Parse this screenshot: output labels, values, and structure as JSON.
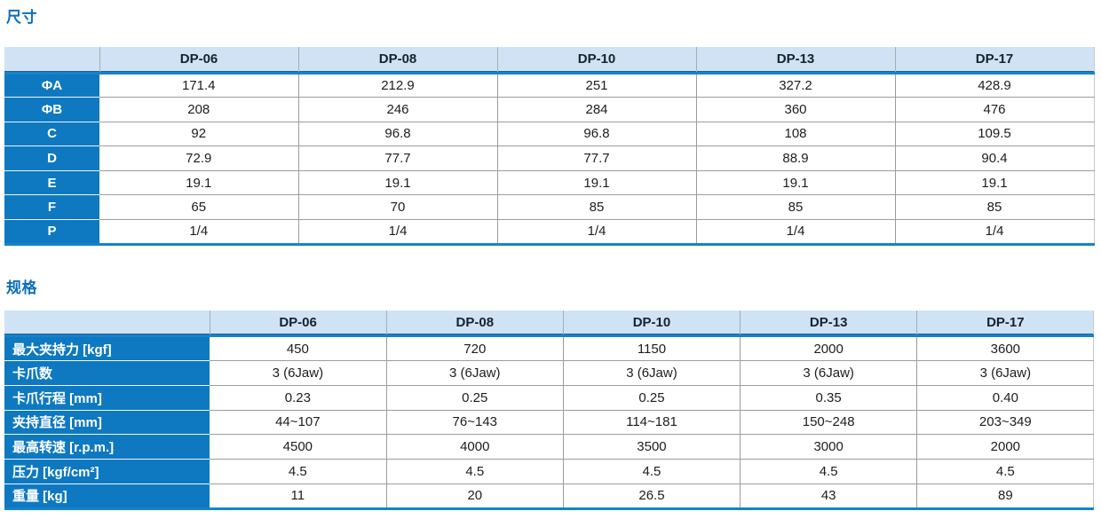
{
  "colors": {
    "title_blue": "#0c6fbc",
    "header_bg": "#cfe3f4",
    "label_bg": "#0e79c0",
    "rule_blue": "#1583cc",
    "grid_gray": "#9c9c9c"
  },
  "dimensions_table": {
    "title": "尺寸",
    "columns": [
      "DP-06",
      "DP-08",
      "DP-10",
      "DP-13",
      "DP-17"
    ],
    "rows": [
      {
        "label": "ΦA",
        "values": [
          "171.4",
          "212.9",
          "251",
          "327.2",
          "428.9"
        ]
      },
      {
        "label": "ΦB",
        "values": [
          "208",
          "246",
          "284",
          "360",
          "476"
        ]
      },
      {
        "label": "C",
        "values": [
          "92",
          "96.8",
          "96.8",
          "108",
          "109.5"
        ]
      },
      {
        "label": "D",
        "values": [
          "72.9",
          "77.7",
          "77.7",
          "88.9",
          "90.4"
        ]
      },
      {
        "label": "E",
        "values": [
          "19.1",
          "19.1",
          "19.1",
          "19.1",
          "19.1"
        ]
      },
      {
        "label": "F",
        "values": [
          "65",
          "70",
          "85",
          "85",
          "85"
        ]
      },
      {
        "label": "P",
        "values": [
          "1/4",
          "1/4",
          "1/4",
          "1/4",
          "1/4"
        ]
      }
    ]
  },
  "specs_table": {
    "title": "规格",
    "columns": [
      "DP-06",
      "DP-08",
      "DP-10",
      "DP-13",
      "DP-17"
    ],
    "rows": [
      {
        "label": "最大夹持力 [kgf]",
        "values": [
          "450",
          "720",
          "1150",
          "2000",
          "3600"
        ]
      },
      {
        "label": "卡爪数",
        "values": [
          "3 (6Jaw)",
          "3 (6Jaw)",
          "3 (6Jaw)",
          "3 (6Jaw)",
          "3 (6Jaw)"
        ]
      },
      {
        "label": "卡爪行程 [mm]",
        "values": [
          "0.23",
          "0.25",
          "0.25",
          "0.35",
          "0.40"
        ]
      },
      {
        "label": "夹持直径 [mm]",
        "values": [
          "44~107",
          "76~143",
          "114~181",
          "150~248",
          "203~349"
        ]
      },
      {
        "label": "最高转速 [r.p.m.]",
        "values": [
          "4500",
          "4000",
          "3500",
          "3000",
          "2000"
        ]
      },
      {
        "label": "压力 [kgf/cm²]",
        "values": [
          "4.5",
          "4.5",
          "4.5",
          "4.5",
          "4.5"
        ]
      },
      {
        "label": "重量 [kg]",
        "values": [
          "11",
          "20",
          "26.5",
          "43",
          "89"
        ]
      }
    ]
  }
}
